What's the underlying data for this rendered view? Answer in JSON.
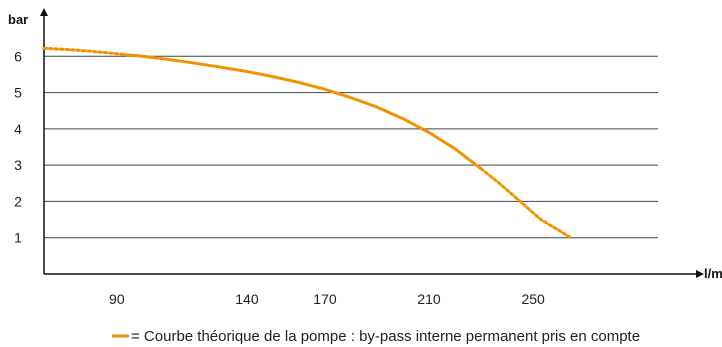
{
  "chart_data": {
    "type": "line",
    "title": "",
    "xlabel": "l/min.",
    "ylabel": "bar",
    "xlim": [
      62,
      298
    ],
    "ylim": [
      0,
      7
    ],
    "xticks": [
      90,
      140,
      170,
      210,
      250
    ],
    "yticks": [
      1,
      2,
      3,
      4,
      5,
      6
    ],
    "grid": "horizontal",
    "series": [
      {
        "name": "",
        "color": "#F39200",
        "dashed_segments": [
          {
            "x": [
              62,
              70,
              80,
              90,
              94
            ],
            "y": [
              6.22,
              6.19,
              6.14,
              6.07,
              6.04
            ]
          },
          {
            "x": [
              230,
              237,
              245,
              253,
              260,
              265
            ],
            "y": [
              2.9,
              2.5,
              2.0,
              1.5,
              1.2,
              0.97
            ]
          }
        ],
        "solid_segment": {
          "x": [
            94,
            100,
            110,
            120,
            130,
            140,
            150,
            160,
            170,
            180,
            190,
            200,
            210,
            220,
            230
          ],
          "y": [
            6.04,
            6.0,
            5.91,
            5.81,
            5.7,
            5.58,
            5.44,
            5.28,
            5.09,
            4.86,
            4.6,
            4.28,
            3.9,
            3.45,
            2.9
          ]
        }
      }
    ],
    "legend": {
      "placement": "bottom-right",
      "text": "= Courbe théorique de la pompe : by-pass interne permanent pris en compte"
    }
  }
}
